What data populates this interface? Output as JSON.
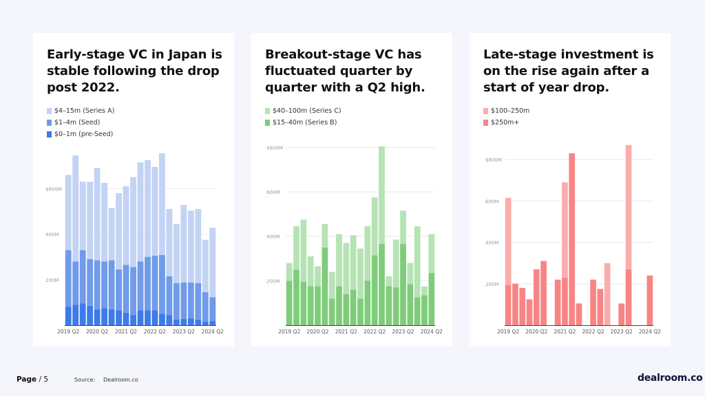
{
  "page": {
    "label": "Page",
    "separator": "/",
    "number": "5"
  },
  "source": {
    "label": "Source:",
    "value": "Dealroom.co"
  },
  "brand": "dealroom.co",
  "colors": {
    "lightBlue": "#c2d3f4",
    "midBlue": "#6f9be9",
    "darkBlue": "#3e7ae8",
    "lightGreen": "#b6e3b4",
    "green": "#7fcc7b",
    "lightRed": "#fbadad",
    "red": "#f78585",
    "grid": "#e8e8e8",
    "axis": "#444444",
    "tick": "#9a9a9a"
  },
  "panels": [
    {
      "title": "Early-stage VC in Japan is stable following the drop post 2022.",
      "legend": [
        {
          "label": "$4–15m (Series A)",
          "color": "#c2d3f4"
        },
        {
          "label": "$1–4m (Seed)",
          "color": "#6f9be9"
        },
        {
          "label": "$0–1m (pre-Seed)",
          "color": "#3e7ae8"
        }
      ]
    },
    {
      "title": "Breakout-stage VC has fluctuated quarter by quarter with a Q2 high.",
      "legend": [
        {
          "label": "$40–100m (Series C)",
          "color": "#b6e3b4"
        },
        {
          "label": "$15–40m (Series B)",
          "color": "#7fcc7b"
        }
      ]
    },
    {
      "title": "Late-stage investment is on the rise again after a start of year drop.",
      "legend": [
        {
          "label": "$100–250m",
          "color": "#fbadad"
        },
        {
          "label": "$250m+",
          "color": "#f78585"
        }
      ]
    }
  ],
  "chart_data": [
    {
      "type": "bar",
      "stacked": true,
      "title": "Early-stage VC in Japan is stable following the drop post 2022.",
      "categories": [
        "2019 Q2",
        "2019 Q3",
        "2019 Q4",
        "2020 Q1",
        "2020 Q2",
        "2020 Q3",
        "2020 Q4",
        "2021 Q1",
        "2021 Q2",
        "2021 Q3",
        "2021 Q4",
        "2022 Q1",
        "2022 Q2",
        "2022 Q3",
        "2022 Q4",
        "2023 Q1",
        "2023 Q2",
        "2023 Q3",
        "2023 Q4",
        "2024 Q1",
        "2024 Q2"
      ],
      "tick_labels": [
        "2019 Q2",
        "2020 Q2",
        "2021 Q2",
        "2022 Q2",
        "2023 Q2",
        "2024 Q2"
      ],
      "tick_every": 4,
      "y_ticks": [
        {
          "value": 200,
          "label": "200M"
        },
        {
          "value": 400,
          "label": "400M"
        },
        {
          "value": 600,
          "label": "$600M"
        }
      ],
      "ylim": [
        0,
        800
      ],
      "series": [
        {
          "name": "$0–1m (pre-Seed)",
          "color": "#3e7ae8",
          "values": [
            80,
            90,
            95,
            85,
            70,
            75,
            70,
            65,
            55,
            45,
            65,
            65,
            65,
            50,
            45,
            25,
            28,
            30,
            25,
            15,
            18
          ]
        },
        {
          "name": "$1–4m (Seed)",
          "color": "#6f9be9",
          "values": [
            250,
            190,
            235,
            205,
            215,
            205,
            215,
            180,
            210,
            210,
            215,
            235,
            240,
            258,
            170,
            160,
            160,
            158,
            160,
            130,
            105
          ]
        },
        {
          "name": "$4–15m (Series A)",
          "color": "#c2d3f4",
          "values": [
            330,
            465,
            300,
            340,
            405,
            345,
            230,
            335,
            345,
            395,
            435,
            425,
            390,
            447,
            295,
            260,
            340,
            315,
            325,
            230,
            305
          ]
        }
      ]
    },
    {
      "type": "bar",
      "stacked": true,
      "title": "Breakout-stage VC has fluctuated quarter by quarter with a Q2 high.",
      "categories": [
        "2019 Q2",
        "2019 Q3",
        "2019 Q4",
        "2020 Q1",
        "2020 Q2",
        "2020 Q3",
        "2020 Q4",
        "2021 Q1",
        "2021 Q2",
        "2021 Q3",
        "2021 Q4",
        "2022 Q1",
        "2022 Q2",
        "2022 Q3",
        "2022 Q4",
        "2023 Q1",
        "2023 Q2",
        "2023 Q3",
        "2023 Q4",
        "2024 Q1",
        "2024 Q2"
      ],
      "tick_labels": [
        "2019 Q2",
        "2020 Q2",
        "2021 Q2",
        "2022 Q2",
        "2023 Q2",
        "2024 Q2"
      ],
      "tick_every": 4,
      "y_ticks": [
        {
          "value": 200,
          "label": "200M"
        },
        {
          "value": 400,
          "label": "400M"
        },
        {
          "value": 600,
          "label": "600M"
        },
        {
          "value": 800,
          "label": "$800M"
        }
      ],
      "ylim": [
        0,
        820
      ],
      "series": [
        {
          "name": "$15–40m (Series B)",
          "color": "#7fcc7b",
          "values": [
            200,
            250,
            195,
            175,
            175,
            350,
            120,
            175,
            140,
            160,
            120,
            200,
            315,
            365,
            175,
            170,
            365,
            185,
            125,
            135,
            235
          ]
        },
        {
          "name": "$40–100m (Series C)",
          "color": "#b6e3b4",
          "values": [
            80,
            195,
            280,
            135,
            90,
            105,
            120,
            235,
            230,
            245,
            225,
            245,
            260,
            440,
            45,
            215,
            150,
            95,
            320,
            40,
            175
          ]
        }
      ]
    },
    {
      "type": "bar",
      "stacked": true,
      "title": "Late-stage investment is on the rise again after a start of year drop.",
      "categories": [
        "2019 Q2",
        "2019 Q3",
        "2019 Q4",
        "2020 Q1",
        "2020 Q2",
        "2020 Q3",
        "2020 Q4",
        "2021 Q1",
        "2021 Q2",
        "2021 Q3",
        "2021 Q4",
        "2022 Q1",
        "2022 Q2",
        "2022 Q3",
        "2022 Q4",
        "2023 Q1",
        "2023 Q2",
        "2023 Q3",
        "2023 Q4",
        "2024 Q1",
        "2024 Q2"
      ],
      "tick_labels": [
        "2019 Q2",
        "2020 Q2",
        "2021 Q2",
        "2022 Q2",
        "2023 Q2",
        "2024 Q2"
      ],
      "tick_every": 4,
      "y_ticks": [
        {
          "value": 200,
          "label": "200M"
        },
        {
          "value": 400,
          "label": "400M"
        },
        {
          "value": 600,
          "label": "600M"
        },
        {
          "value": 800,
          "label": "$800M"
        }
      ],
      "ylim": [
        0,
        880
      ],
      "series": [
        {
          "name": "$250m+",
          "color": "#f78585",
          "values": [
            195,
            200,
            180,
            125,
            270,
            310,
            0,
            220,
            230,
            830,
            105,
            0,
            220,
            175,
            0,
            0,
            105,
            270,
            0,
            0,
            240
          ]
        },
        {
          "name": "$100–250m",
          "color": "#fbadad",
          "values": [
            420,
            0,
            0,
            0,
            0,
            0,
            0,
            0,
            460,
            0,
            0,
            0,
            0,
            0,
            300,
            0,
            0,
            600,
            0,
            0,
            0
          ]
        }
      ]
    }
  ]
}
